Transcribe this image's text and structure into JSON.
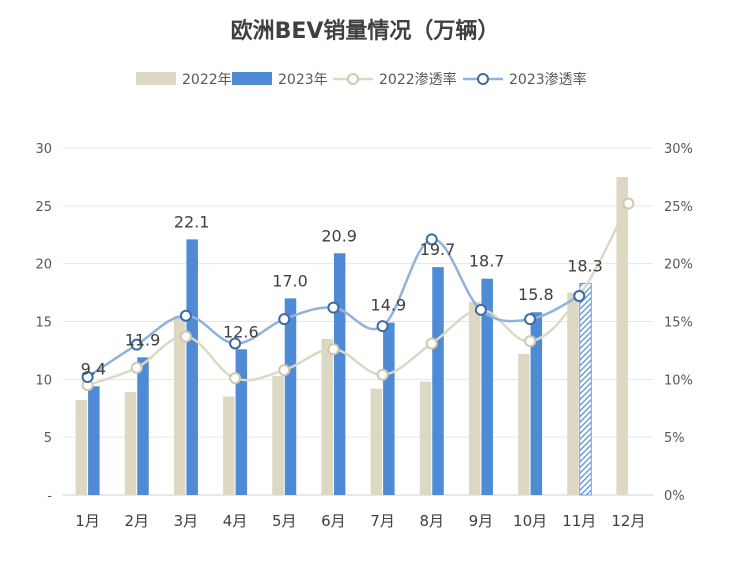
{
  "chart_data": {
    "type": "bar",
    "title": "欧洲BEV销量情况（万辆）",
    "categories": [
      "1月",
      "2月",
      "3月",
      "4月",
      "5月",
      "6月",
      "7月",
      "8月",
      "9月",
      "10月",
      "11月",
      "12月"
    ],
    "series": [
      {
        "name": "2022年",
        "kind": "bar",
        "axis": "left",
        "color": "#ddd8c4",
        "values": [
          8.2,
          8.9,
          15.5,
          8.5,
          10.3,
          13.5,
          9.2,
          9.8,
          16.7,
          12.2,
          17.5,
          27.5
        ]
      },
      {
        "name": "2023年",
        "kind": "bar",
        "axis": "left",
        "color": "#4e8bd4",
        "values": [
          9.4,
          11.9,
          22.1,
          12.6,
          17.0,
          20.9,
          14.9,
          19.7,
          18.7,
          15.8,
          18.3,
          null
        ],
        "data_labels": [
          "9.4",
          "11.9",
          "22.1",
          "12.6",
          "17.0",
          "20.9",
          "14.9",
          "19.7",
          "18.7",
          "15.8",
          "18.3",
          ""
        ],
        "hatched_index": 10
      },
      {
        "name": "2022渗透率",
        "kind": "line",
        "axis": "right",
        "color": "#ddd8c4",
        "values": [
          0.095,
          0.11,
          0.137,
          0.101,
          0.108,
          0.126,
          0.104,
          0.131,
          0.16,
          0.133,
          0.172,
          0.252
        ]
      },
      {
        "name": "2023渗透率",
        "kind": "line",
        "axis": "right",
        "color": "#8fb3dc",
        "values": [
          0.102,
          0.13,
          0.155,
          0.131,
          0.152,
          0.162,
          0.146,
          0.221,
          0.16,
          0.152,
          0.172,
          null
        ]
      }
    ],
    "y_left": {
      "min": 0,
      "max": 30,
      "ticks": [
        "-",
        "5",
        "10",
        "15",
        "20",
        "25",
        "30"
      ]
    },
    "y_right": {
      "min": 0,
      "max": 0.3,
      "ticks": [
        "0%",
        "5%",
        "10%",
        "15%",
        "20%",
        "25%",
        "30%"
      ]
    },
    "grid": true,
    "legend_position": "top"
  }
}
